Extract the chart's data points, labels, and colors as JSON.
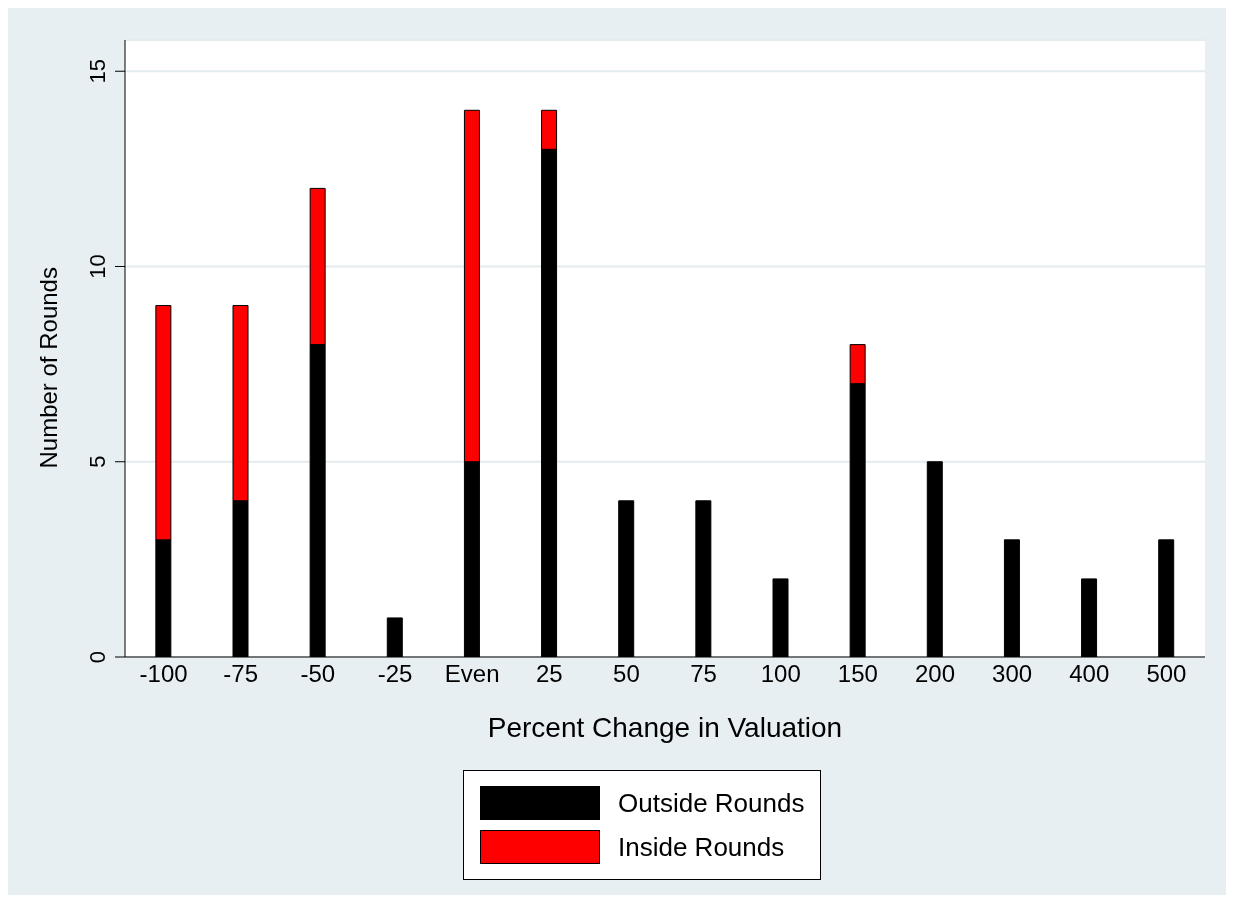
{
  "chart_data": {
    "type": "bar",
    "xlabel": "Percent Change in Valuation",
    "ylabel": "Number of Rounds",
    "categories": [
      "-100",
      "-75",
      "-50",
      "-25",
      "Even",
      "25",
      "50",
      "75",
      "100",
      "150",
      "200",
      "300",
      "400",
      "500"
    ],
    "stacked": true,
    "series": [
      {
        "name": "Outside Rounds",
        "color": "#000000",
        "values": [
          3,
          4,
          8,
          1,
          5,
          13,
          4,
          4,
          2,
          7,
          5,
          3,
          2,
          3
        ]
      },
      {
        "name": "Inside Rounds",
        "color": "#ff0000",
        "values": [
          6,
          5,
          4,
          null,
          9,
          1,
          null,
          null,
          null,
          1,
          null,
          null,
          null,
          null
        ]
      }
    ],
    "ylim": [
      0,
      15.8
    ],
    "yticks": [
      0,
      5,
      10,
      15
    ],
    "grid": "y",
    "legend": "bottom"
  }
}
